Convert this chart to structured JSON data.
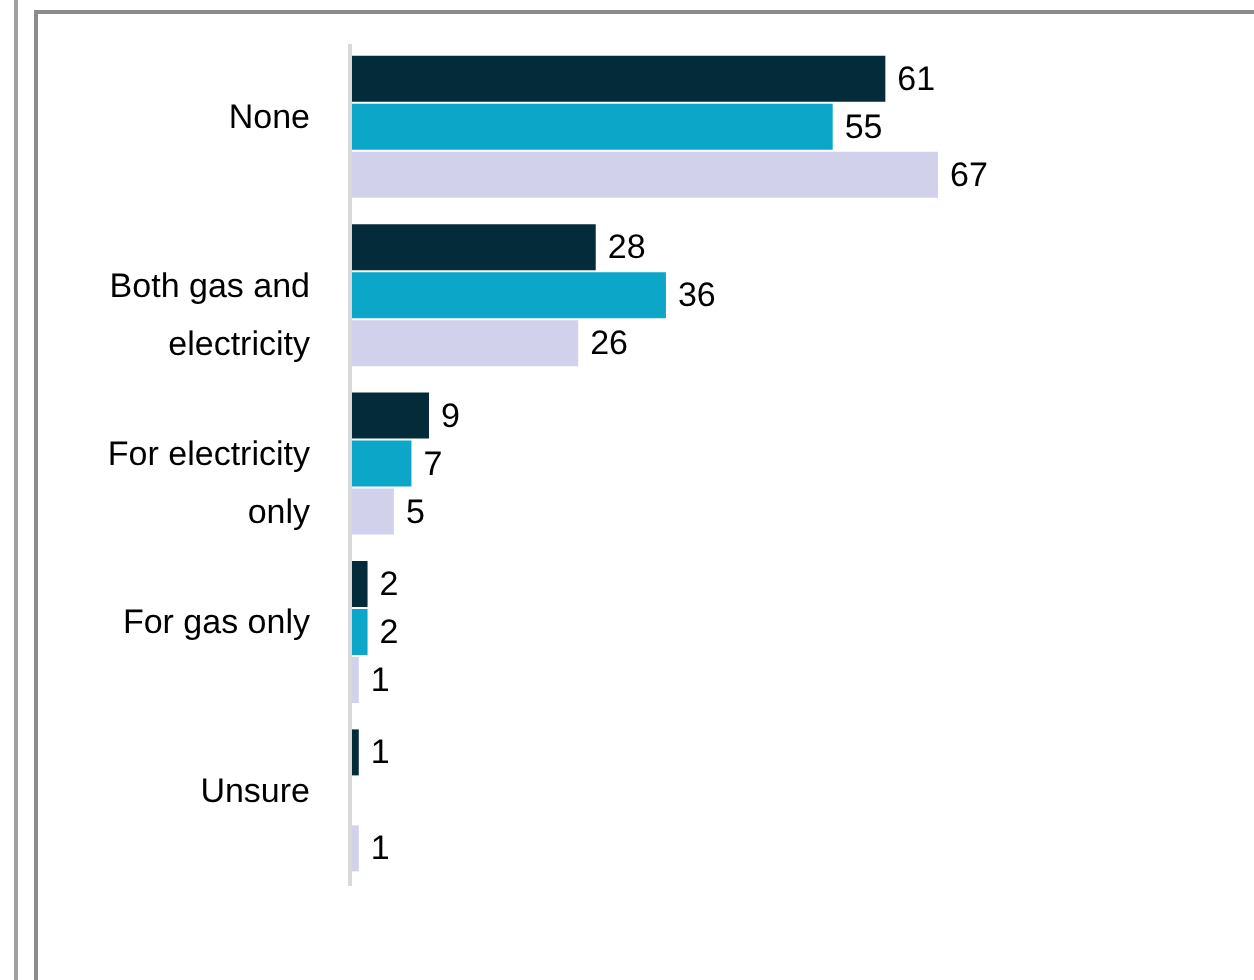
{
  "chart_data": {
    "type": "bar",
    "orientation": "horizontal",
    "categories": [
      "None",
      "Both gas and electricity",
      "For electricity only",
      "For gas only",
      "Unsure"
    ],
    "series": [
      {
        "color": "#032b3a",
        "values": [
          61,
          28,
          9,
          2,
          1
        ]
      },
      {
        "color": "#0ba6c8",
        "values": [
          55,
          36,
          7,
          2,
          null
        ]
      },
      {
        "color": "#d1d1eb",
        "values": [
          67,
          26,
          5,
          1,
          1
        ]
      }
    ],
    "data_labels": true,
    "tick_labels": "y"
  }
}
